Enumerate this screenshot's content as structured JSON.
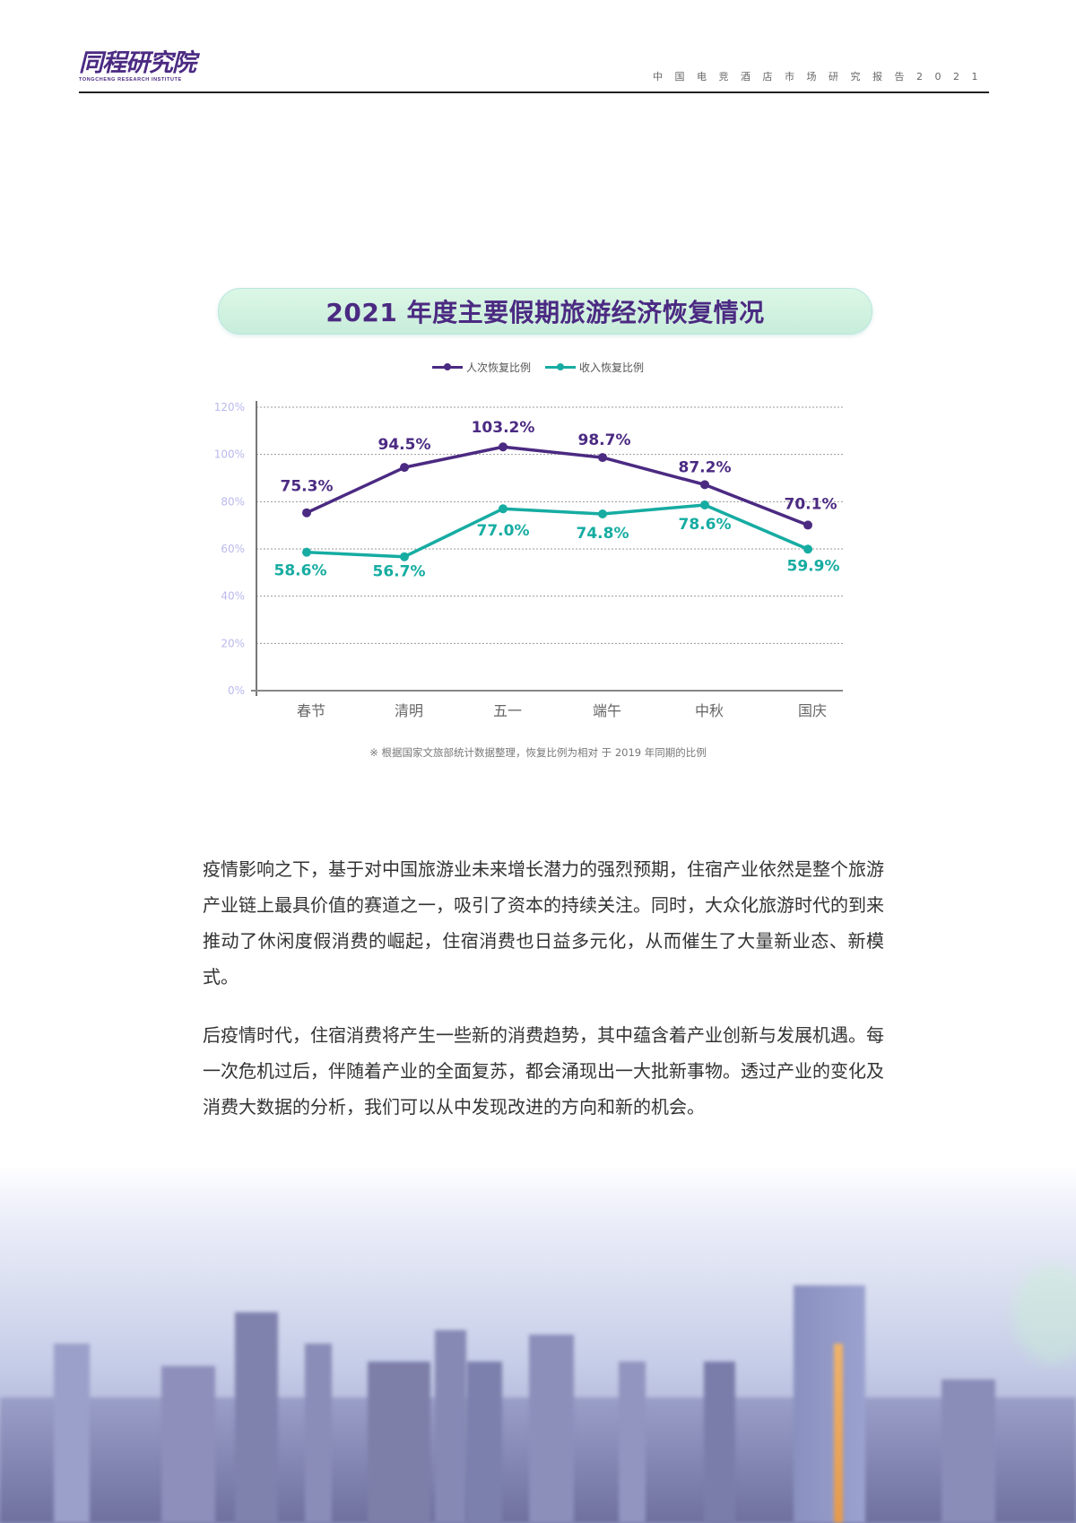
{
  "header": {
    "logo_cn": "同程研究院",
    "logo_en": "TONGCHENG RESEARCH INSTITUTE",
    "report_title": "中国电竞酒店市场研究报告2021"
  },
  "chart_banner": {
    "title": "2021 年度主要假期旅游经济恢复情况"
  },
  "legend": [
    {
      "label": "人次恢复比例",
      "color": "#4b2a82"
    },
    {
      "label": "收入恢复比例",
      "color": "#16aca2"
    }
  ],
  "chart_data": {
    "type": "line",
    "title": "2021 年度主要假期旅游经济恢复情况",
    "categories": [
      "春节",
      "清明",
      "五一",
      "端午",
      "中秋",
      "国庆"
    ],
    "series": [
      {
        "name": "人次恢复比例",
        "color": "#4b2a82",
        "values": [
          75.3,
          94.5,
          103.2,
          98.7,
          87.2,
          70.1
        ],
        "labels": [
          "75.3%",
          "94.5%",
          "103.2%",
          "98.7%",
          "87.2%",
          "70.1%"
        ]
      },
      {
        "name": "收入恢复比例",
        "color": "#16aca2",
        "values": [
          58.6,
          56.7,
          77.0,
          74.8,
          78.6,
          59.9
        ],
        "labels": [
          "58.6%",
          "56.7%",
          "77.0%",
          "74.8%",
          "78.6%",
          "59.9%"
        ]
      }
    ],
    "y_ticks": [
      "0%",
      "20%",
      "40%",
      "60%",
      "80%",
      "100%",
      "120%"
    ],
    "ylim": [
      0,
      120
    ],
    "xlabel": "",
    "ylabel": "",
    "grid": true,
    "legend_position": "top"
  },
  "chart_note": "※ 根据国家文旅部统计数据整理，恢复比例为相对 于 2019 年同期的比例",
  "body": {
    "paragraph_1": "疫情影响之下，基于对中国旅游业未来增长潜力的强烈预期，住宿产业依然是整个旅游产业链上最具价值的赛道之一，吸引了资本的持续关注。同时，大众化旅游时代的到来推动了休闲度假消费的崛起，住宿消费也日益多元化，从而催生了大量新业态、新模式。",
    "paragraph_2": "后疫情时代，住宿消费将产生一些新的消费趋势，其中蕴含着产业创新与发展机遇。每一次危机过后，伴随着产业的全面复苏，都会涌现出一大批新事物。透过产业的变化及消费大数据的分析，我们可以从中发现改进的方向和新的机会。"
  }
}
